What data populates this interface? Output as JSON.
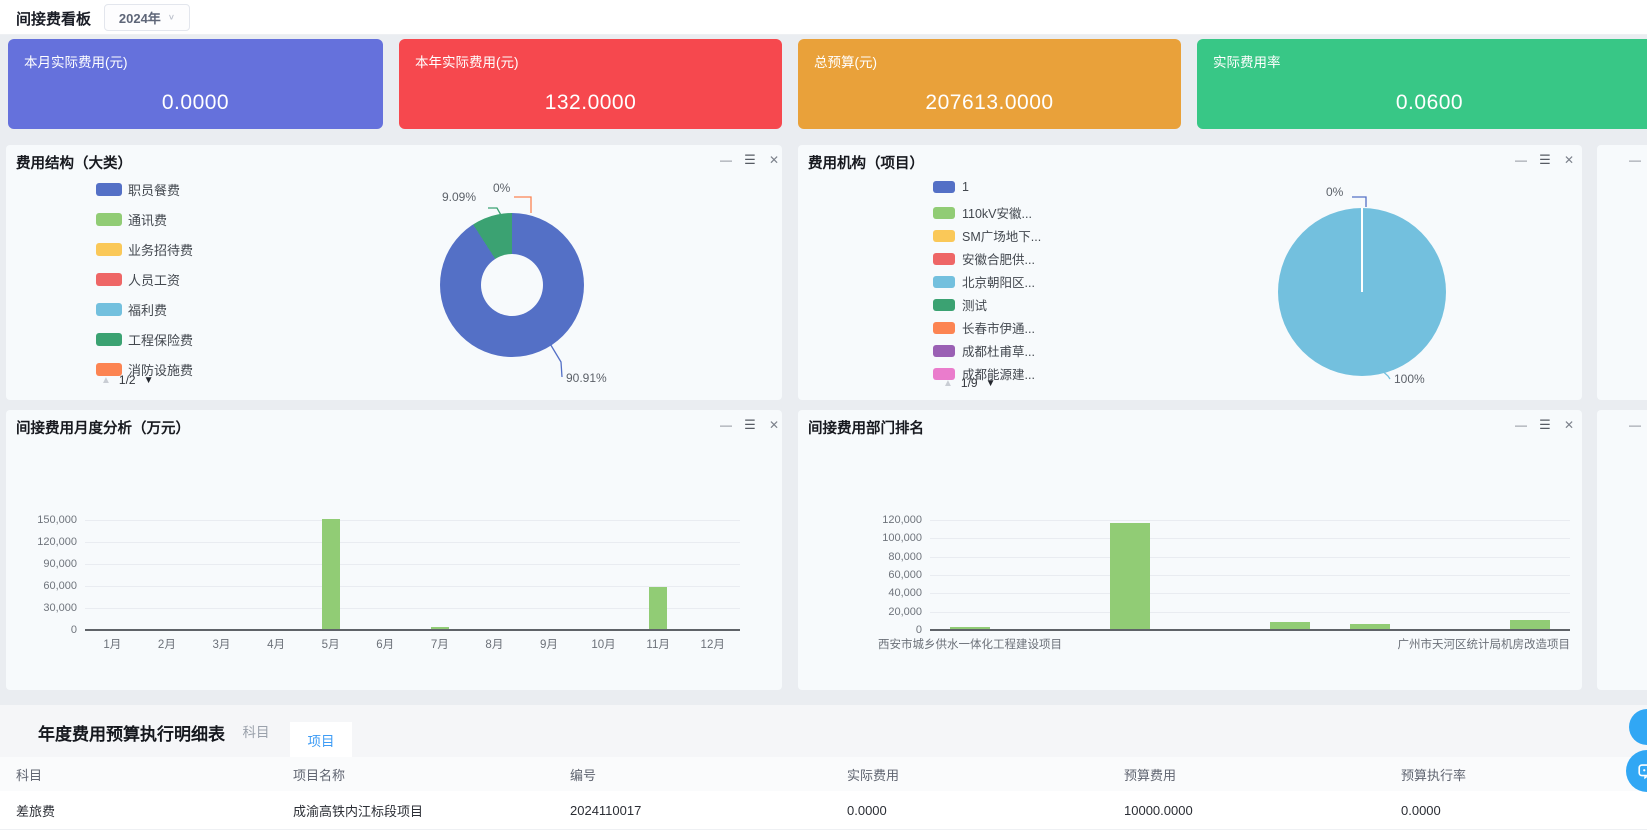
{
  "topbar": {
    "title": "间接费看板",
    "year": "2024年"
  },
  "kpis": [
    {
      "label": "本月实际费用(元)",
      "value": "0.0000",
      "color": "#6571dc"
    },
    {
      "label": "本年实际费用(元)",
      "value": "132.0000",
      "color": "#f6484e"
    },
    {
      "label": "总预算(元)",
      "value": "207613.0000",
      "color": "#e9a13a"
    },
    {
      "label": "实际费用率",
      "value": "0.0600",
      "color": "#38c786"
    }
  ],
  "panel_icons": {
    "minimize": "—",
    "menu": "☰",
    "close": "✕"
  },
  "cost_structure": {
    "title": "费用结构（大类）",
    "page": "1/2",
    "pager_up": "▲",
    "pager_down": "▼",
    "legend": [
      {
        "label": "职员餐费",
        "color": "#5470c6"
      },
      {
        "label": "通讯费",
        "color": "#91cc75"
      },
      {
        "label": "业务招待费",
        "color": "#fac858"
      },
      {
        "label": "人员工资",
        "color": "#ee6666"
      },
      {
        "label": "福利费",
        "color": "#73c0de"
      },
      {
        "label": "工程保险费",
        "color": "#3ba272"
      },
      {
        "label": "消防设施费",
        "color": "#fc8452"
      }
    ],
    "chart_data": {
      "type": "pie",
      "slices": [
        {
          "name": "职员餐费",
          "pct": 90.91,
          "color": "#5470c6",
          "label": "90.91%"
        },
        {
          "name": "工程保险费",
          "pct": 9.09,
          "color": "#3ba272",
          "label": "9.09%"
        },
        {
          "name": "消防设施费",
          "pct": 0,
          "color": "#fc8452",
          "label": "0%"
        }
      ]
    }
  },
  "cost_org": {
    "title": "费用机构（项目）",
    "page": "1/9",
    "pager_up": "▲",
    "pager_down": "▼",
    "legend": [
      {
        "label": "1",
        "color": "#5470c6"
      },
      {
        "label": "110kV安徽...",
        "color": "#91cc75"
      },
      {
        "label": "SM广场地下...",
        "color": "#fac858"
      },
      {
        "label": "安徽合肥供...",
        "color": "#ee6666"
      },
      {
        "label": "北京朝阳区...",
        "color": "#73c0de"
      },
      {
        "label": "测试",
        "color": "#3ba272"
      },
      {
        "label": "长春市伊通...",
        "color": "#fc8452"
      },
      {
        "label": "成都杜甫草...",
        "color": "#9a60b4"
      },
      {
        "label": "成都能源建...",
        "color": "#ea7ccc"
      }
    ],
    "chart_data": {
      "type": "pie",
      "slices": [
        {
          "name": "北京朝阳区...",
          "pct": 100,
          "color": "#73c0de",
          "label": "100%"
        },
        {
          "name": "1",
          "pct": 0,
          "color": "#5470c6",
          "label": "0%"
        }
      ]
    }
  },
  "monthly": {
    "title": "间接费用月度分析（万元）",
    "chart_data": {
      "type": "bar",
      "categories": [
        "1月",
        "2月",
        "3月",
        "4月",
        "5月",
        "6月",
        "7月",
        "8月",
        "9月",
        "10月",
        "11月",
        "12月"
      ],
      "values": [
        0,
        0,
        0,
        0,
        150000,
        0,
        1200,
        0,
        0,
        0,
        57500,
        0
      ],
      "yticks": [
        0,
        30000,
        60000,
        90000,
        120000,
        150000
      ],
      "ymax": 150000,
      "bar_color": "#91cc75"
    }
  },
  "dept_rank": {
    "title": "间接费用部门排名",
    "chart_data": {
      "type": "bar",
      "categories": [
        "西安市城乡供水一体化工程建设项目",
        "",
        "",
        "",
        "",
        "",
        "",
        "广州市天河区统计局机房改造项目"
      ],
      "values": [
        600,
        0,
        116000,
        0,
        7500,
        5500,
        0,
        9500
      ],
      "yticks": [
        0,
        20000,
        40000,
        60000,
        80000,
        100000,
        120000
      ],
      "ymax": 120000,
      "bar_color": "#91cc75"
    }
  },
  "table": {
    "title": "年度费用预算执行明细表",
    "tabs": [
      {
        "label": "科目",
        "active": false
      },
      {
        "label": "项目",
        "active": true
      }
    ],
    "columns": [
      "科目",
      "项目名称",
      "编号",
      "实际费用",
      "预算费用",
      "预算执行率"
    ],
    "rows": [
      [
        "差旅费",
        "成渝高铁内江标段项目",
        "2024110017",
        "0.0000",
        "10000.0000",
        "0.0000"
      ]
    ]
  }
}
